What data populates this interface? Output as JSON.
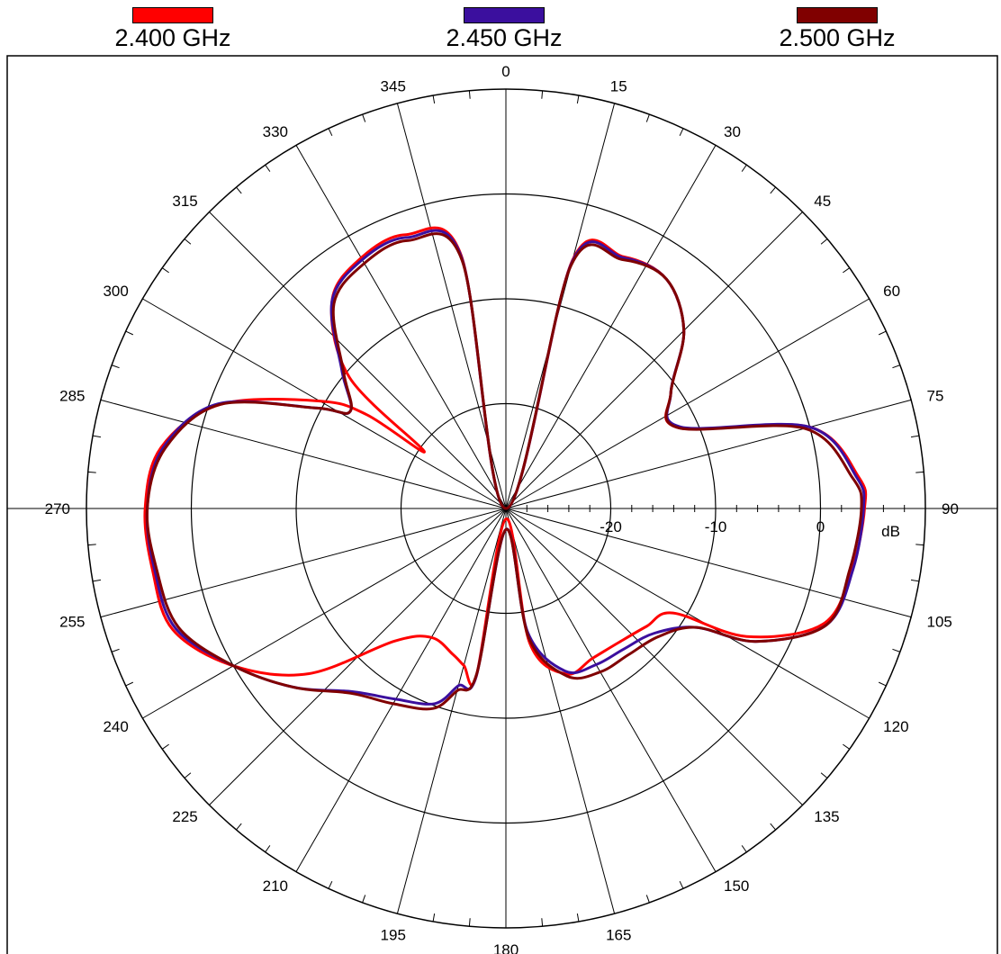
{
  "chart_data": {
    "type": "polar-line",
    "angle_unit": "degrees",
    "angular_direction": "clockwise",
    "zero_angle_position": "top",
    "angular_ticks": [
      "0",
      "15",
      "30",
      "45",
      "60",
      "75",
      "90",
      "105",
      "120",
      "135",
      "150",
      "165",
      "180",
      "195",
      "210",
      "225",
      "240",
      "255",
      "270",
      "285",
      "300",
      "315",
      "330",
      "345"
    ],
    "radial_unit": "dB",
    "radial_range": [
      -30,
      10
    ],
    "radial_ticks": [
      "-20",
      "-10",
      "0"
    ],
    "grid": true,
    "legend_position": "top",
    "series": [
      {
        "name": "2.400 GHz",
        "color": "#ff0000",
        "angles": [
          0,
          15,
          25,
          35,
          45,
          55,
          65,
          75,
          85,
          90,
          100,
          110,
          118,
          122,
          130,
          140,
          150,
          160,
          170,
          180,
          190,
          195,
          200,
          210,
          220,
          230,
          240,
          250,
          260,
          270,
          280,
          290,
          300,
          304,
          305,
          310,
          320,
          330,
          340,
          350,
          360
        ],
        "values": [
          -30,
          -5.5,
          -3.5,
          -3.3,
          -6,
          -10.8,
          -11.8,
          0,
          3.8,
          4.2,
          3.5,
          2.2,
          -4,
          -11.2,
          -12.5,
          -13.3,
          -13.5,
          -13.2,
          -17,
          -29,
          -13.8,
          -14.5,
          -15.2,
          -15.8,
          -13.5,
          -5.5,
          0,
          3.8,
          4.2,
          4.4,
          3.4,
          -1,
          -9.5,
          -14,
          -20.5,
          -10.5,
          -4.2,
          -2.4,
          -2.2,
          -5.5,
          -30
        ]
      },
      {
        "name": "2.450 GHz",
        "color": "#3b0f9e",
        "angles": [
          0,
          15,
          25,
          35,
          45,
          55,
          65,
          75,
          85,
          90,
          100,
          110,
          118,
          122,
          130,
          140,
          150,
          160,
          170,
          180,
          190,
          195,
          200,
          210,
          220,
          230,
          240,
          250,
          260,
          270,
          280,
          290,
          298,
          302,
          310,
          320,
          330,
          340,
          350,
          360
        ],
        "values": [
          -30,
          -5.7,
          -3.6,
          -3.3,
          -6,
          -10.8,
          -11.6,
          0,
          3.6,
          4.1,
          3.6,
          2.5,
          -3,
          -8.6,
          -11.5,
          -12.5,
          -12.8,
          -13.5,
          -18,
          -28,
          -13.8,
          -12.5,
          -10.2,
          -9,
          -7.2,
          -3.5,
          0,
          3.5,
          4,
          4.2,
          3.2,
          -0.8,
          -9.6,
          -12.5,
          -9.6,
          -4.2,
          -2.6,
          -2.5,
          -5.7,
          -30
        ]
      },
      {
        "name": "2.500 GHz",
        "color": "#800000",
        "angles": [
          0,
          15,
          25,
          35,
          45,
          55,
          65,
          75,
          85,
          90,
          100,
          110,
          118,
          122,
          130,
          140,
          150,
          160,
          170,
          180,
          190,
          195,
          200,
          210,
          220,
          230,
          240,
          250,
          260,
          270,
          280,
          290,
          298,
          302,
          310,
          320,
          330,
          340,
          350,
          360
        ],
        "values": [
          -30,
          -6,
          -3.8,
          -3.3,
          -6,
          -10.8,
          -11.8,
          -0.5,
          3.2,
          3.9,
          3.3,
          2.5,
          -3,
          -8.6,
          -11,
          -11.8,
          -12,
          -13,
          -17.5,
          -28,
          -14,
          -12,
          -9.7,
          -8.5,
          -7,
          -3.5,
          0,
          3.2,
          3.8,
          4.2,
          3,
          -1,
          -9.6,
          -12.5,
          -9.8,
          -4.5,
          -3,
          -2.8,
          -6,
          -30
        ]
      }
    ]
  }
}
